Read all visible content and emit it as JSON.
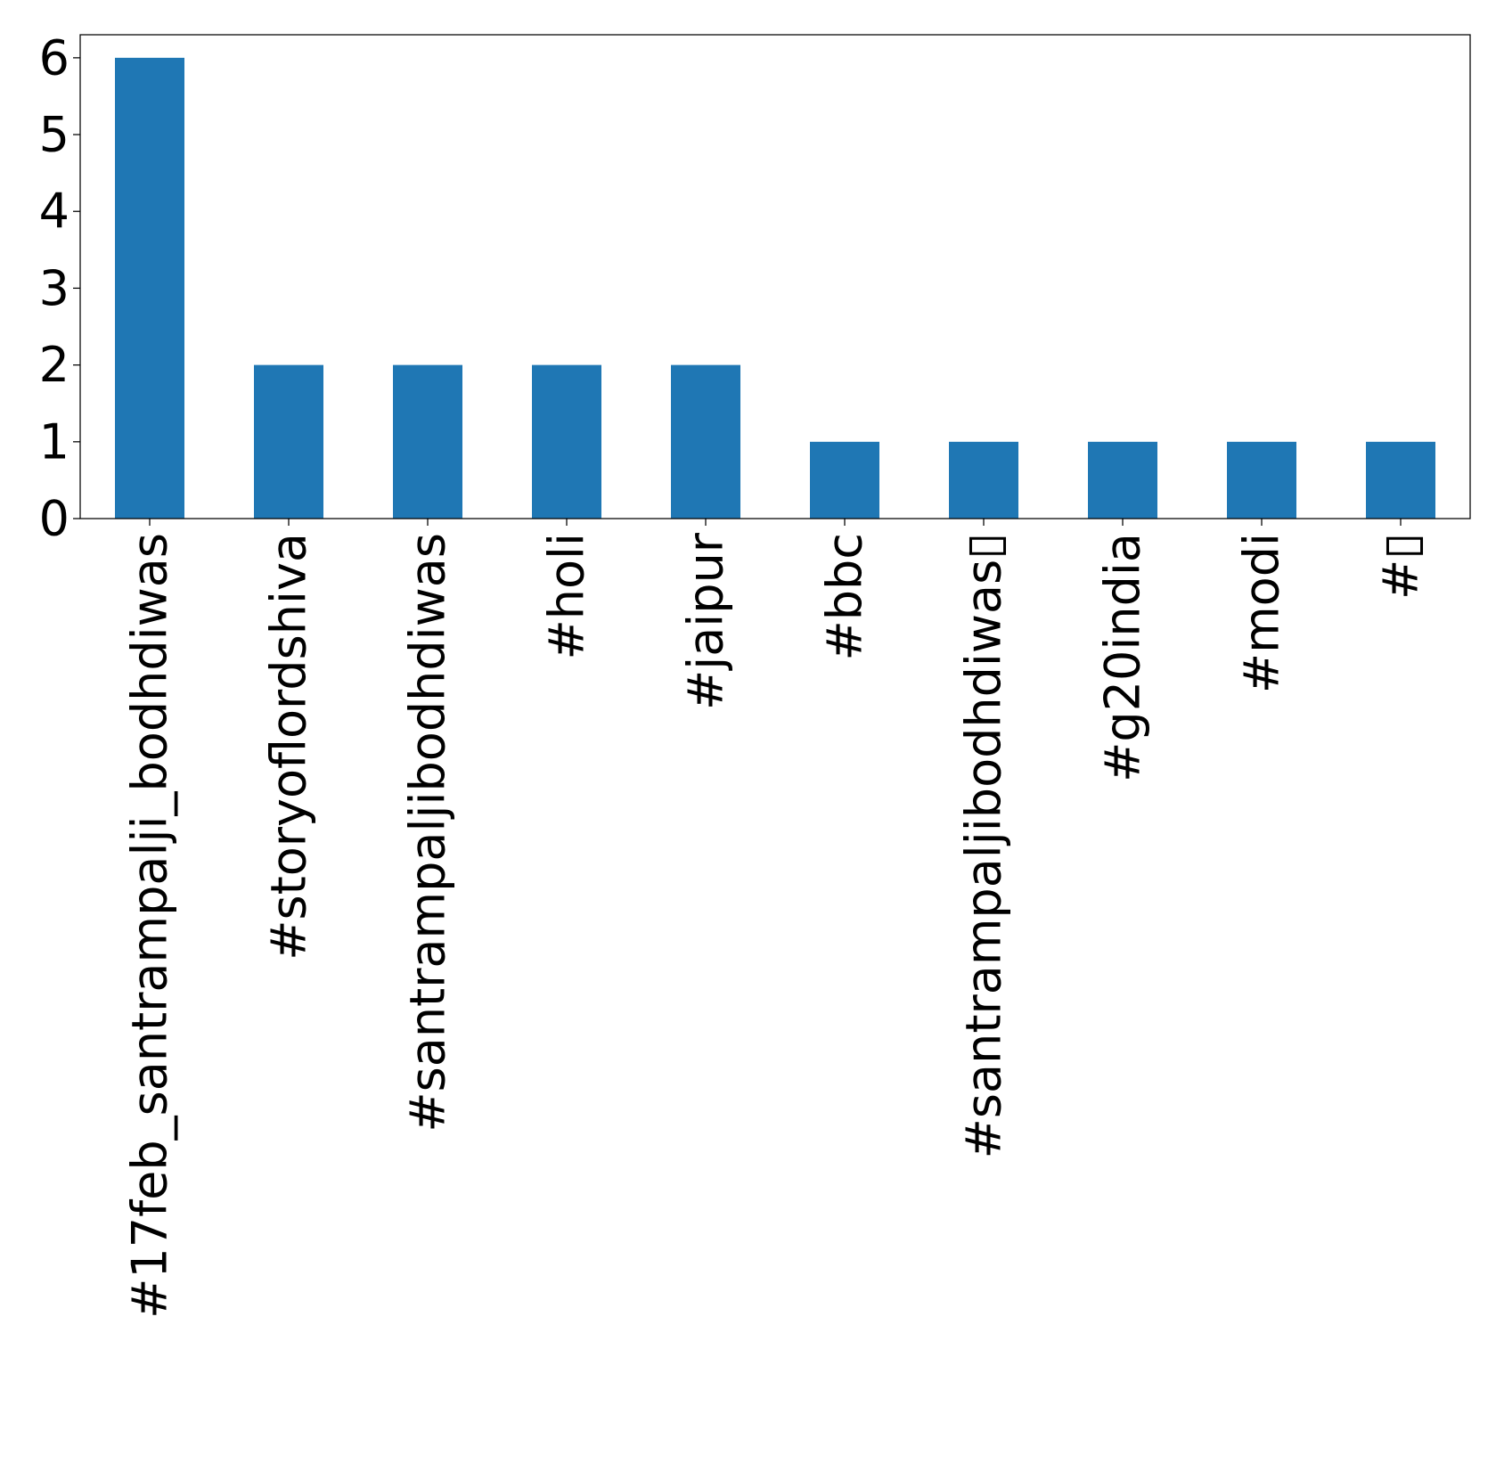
{
  "chart_data": {
    "type": "bar",
    "title": "",
    "xlabel": "",
    "ylabel": "",
    "categories": [
      "#17feb_santrampalji_bodhdiwas",
      "#storyoflordshiva",
      "#santrampaljibodhdiwas",
      "#holi",
      "#jaipur",
      "#bbc",
      "#santrampaljibodhdiwas▯",
      "#g20india",
      "#modi",
      "#▯"
    ],
    "values": [
      6,
      2,
      2,
      2,
      2,
      1,
      1,
      1,
      1,
      1
    ],
    "ylim": [
      0,
      6.3
    ],
    "yticks": [
      0,
      1,
      2,
      3,
      4,
      5,
      6
    ],
    "grid": false,
    "legend": "none",
    "bar_color": "#1f77b4"
  }
}
